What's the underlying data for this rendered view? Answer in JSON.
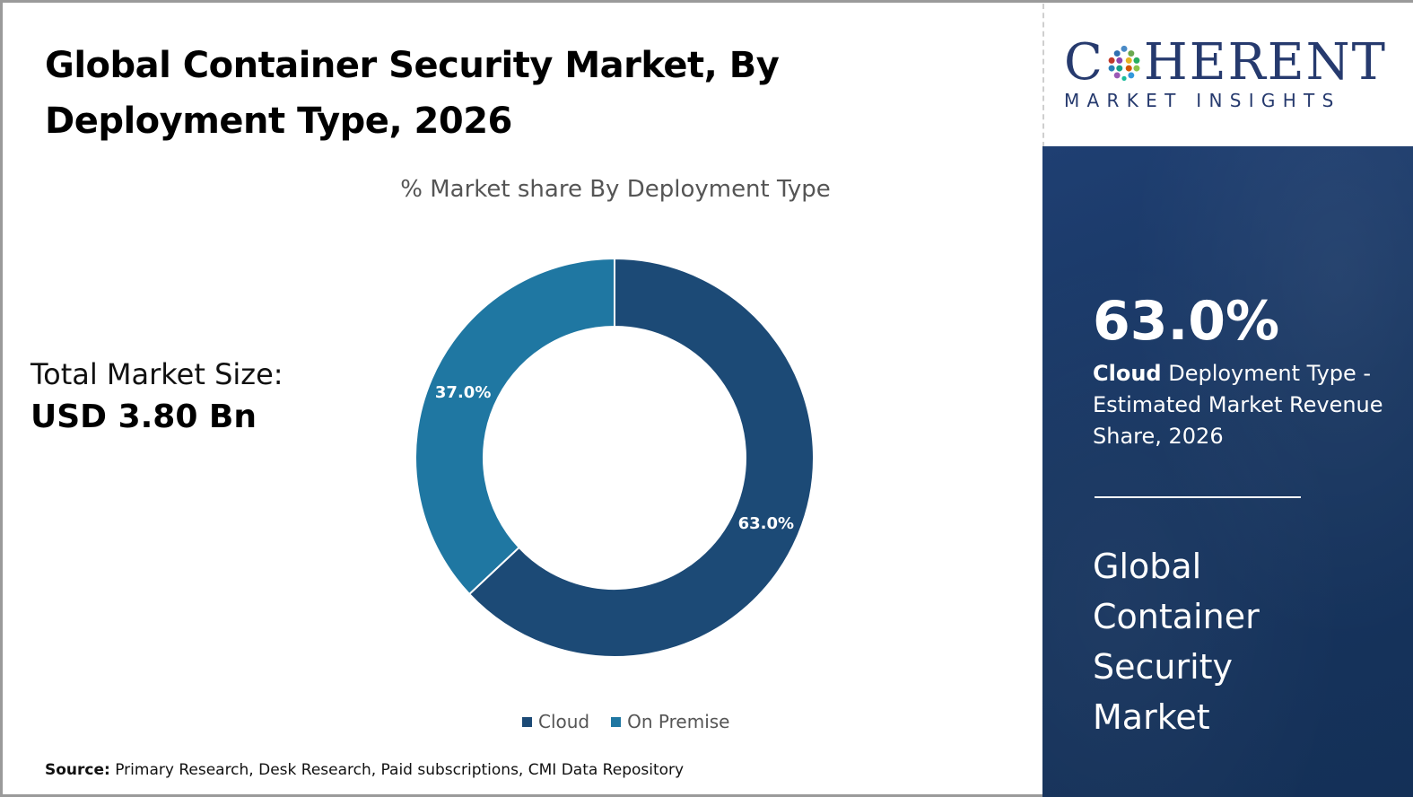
{
  "header": {
    "title_line1": "Global Container Security Market, By",
    "title_line2": "Deployment Type, 2026"
  },
  "market_size": {
    "label": "Total Market Size:",
    "value": "USD 3.80 Bn"
  },
  "source": {
    "label": "Source:",
    "text": " Primary Research, Desk Research, Paid subscriptions, CMI Data Repository"
  },
  "logo": {
    "main_left": "C",
    "main_right": "HERENT",
    "sub": "MARKET INSIGHTS"
  },
  "panel": {
    "percent": "63.0%",
    "desc_bold": "Cloud",
    "desc_rest": " Deployment Type - Estimated Market Revenue Share, 2026",
    "market_line1": "Global",
    "market_line2": "Container",
    "market_line3": "Security",
    "market_line4": "Market"
  },
  "colors": {
    "cloud": "#1c4a76",
    "on_premise": "#1f77a2",
    "panel_bg": "#173560",
    "logo": "#263a6e"
  },
  "chart_data": {
    "type": "pie",
    "title": "% Market share By Deployment Type",
    "categories": [
      "Cloud",
      "On Premise"
    ],
    "values": [
      63.0,
      37.0
    ],
    "data_labels": [
      "63.0%",
      "37.0%"
    ],
    "donut": true,
    "legend": "bottom"
  }
}
